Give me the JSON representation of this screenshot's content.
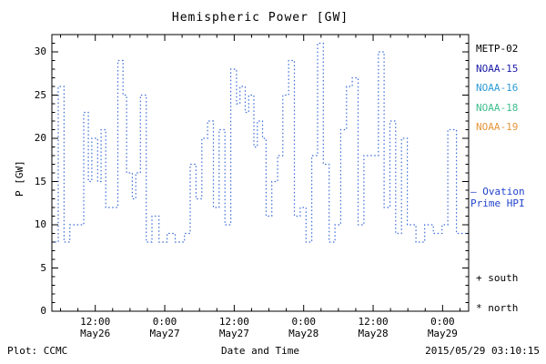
{
  "title": "Hemispheric Power [GW]",
  "ylabel": "P [GW]",
  "xlabel": "Date and Time",
  "footer_left": "Plot: CCMC",
  "footer_right": "2015/05/29 03:10:15",
  "legend": {
    "satellites": [
      {
        "label": "METP-02",
        "color": "#000000"
      },
      {
        "label": "NOAA-15",
        "color": "#1a1aa6"
      },
      {
        "label": "NOAA-16",
        "color": "#2e9bd6"
      },
      {
        "label": "NOAA-18",
        "color": "#3fbf8f"
      },
      {
        "label": "NOAA-19",
        "color": "#e8953a"
      }
    ],
    "ovation_line1": "— Ovation",
    "ovation_line2": "Prime HPI",
    "ovation_color": "#2244cc",
    "south_marker": "+ south",
    "north_marker": "* north"
  },
  "chart_data": {
    "type": "line",
    "style": "dotted-step",
    "line_color": "#3a6bd6",
    "title": "Hemispheric Power [GW]",
    "xlabel": "Date and Time",
    "ylabel": "P [GW]",
    "ylim": [
      0,
      32
    ],
    "xlim_hours": [
      4.5,
      76.5
    ],
    "grid": false,
    "legend_position": "right-outside",
    "y_ticks": [
      0,
      5,
      10,
      15,
      20,
      25,
      30
    ],
    "x_ticks": [
      {
        "hour": 12,
        "time": "12:00",
        "date": "May26"
      },
      {
        "hour": 24,
        "time": "0:00",
        "date": "May27"
      },
      {
        "hour": 36,
        "time": "12:00",
        "date": "May27"
      },
      {
        "hour": 48,
        "time": "0:00",
        "date": "May28"
      },
      {
        "hour": 60,
        "time": "12:00",
        "date": "May28"
      },
      {
        "hour": 72,
        "time": "0:00",
        "date": "May29"
      }
    ],
    "points": [
      {
        "t": 5.0,
        "v": 8
      },
      {
        "t": 5.6,
        "v": 26
      },
      {
        "t": 6.6,
        "v": 8
      },
      {
        "t": 7.6,
        "v": 10
      },
      {
        "t": 9.2,
        "v": 10
      },
      {
        "t": 10.0,
        "v": 23
      },
      {
        "t": 10.8,
        "v": 15
      },
      {
        "t": 11.4,
        "v": 20
      },
      {
        "t": 12.4,
        "v": 15
      },
      {
        "t": 13.0,
        "v": 21
      },
      {
        "t": 13.8,
        "v": 12
      },
      {
        "t": 15.4,
        "v": 12
      },
      {
        "t": 15.9,
        "v": 29
      },
      {
        "t": 16.8,
        "v": 25
      },
      {
        "t": 17.4,
        "v": 16
      },
      {
        "t": 18.4,
        "v": 13
      },
      {
        "t": 19.0,
        "v": 16
      },
      {
        "t": 19.8,
        "v": 25
      },
      {
        "t": 20.8,
        "v": 8
      },
      {
        "t": 21.8,
        "v": 11
      },
      {
        "t": 23.0,
        "v": 8
      },
      {
        "t": 24.4,
        "v": 9
      },
      {
        "t": 25.8,
        "v": 8
      },
      {
        "t": 27.4,
        "v": 9
      },
      {
        "t": 28.4,
        "v": 17
      },
      {
        "t": 29.4,
        "v": 13
      },
      {
        "t": 30.4,
        "v": 20
      },
      {
        "t": 31.4,
        "v": 22
      },
      {
        "t": 32.4,
        "v": 12
      },
      {
        "t": 33.4,
        "v": 21
      },
      {
        "t": 34.4,
        "v": 10
      },
      {
        "t": 35.4,
        "v": 28
      },
      {
        "t": 36.4,
        "v": 24
      },
      {
        "t": 37.0,
        "v": 26
      },
      {
        "t": 37.9,
        "v": 23
      },
      {
        "t": 38.5,
        "v": 25
      },
      {
        "t": 39.4,
        "v": 19
      },
      {
        "t": 40.0,
        "v": 22
      },
      {
        "t": 40.9,
        "v": 20
      },
      {
        "t": 41.5,
        "v": 11
      },
      {
        "t": 42.5,
        "v": 15
      },
      {
        "t": 43.5,
        "v": 18
      },
      {
        "t": 44.4,
        "v": 25
      },
      {
        "t": 45.4,
        "v": 29
      },
      {
        "t": 46.4,
        "v": 11
      },
      {
        "t": 47.4,
        "v": 12
      },
      {
        "t": 48.4,
        "v": 8
      },
      {
        "t": 49.4,
        "v": 18
      },
      {
        "t": 50.4,
        "v": 31
      },
      {
        "t": 51.4,
        "v": 17
      },
      {
        "t": 52.4,
        "v": 8
      },
      {
        "t": 53.4,
        "v": 10
      },
      {
        "t": 54.4,
        "v": 21
      },
      {
        "t": 55.4,
        "v": 26
      },
      {
        "t": 56.4,
        "v": 27
      },
      {
        "t": 57.4,
        "v": 10
      },
      {
        "t": 58.4,
        "v": 18
      },
      {
        "t": 59.9,
        "v": 18
      },
      {
        "t": 60.9,
        "v": 30
      },
      {
        "t": 61.9,
        "v": 12
      },
      {
        "t": 62.9,
        "v": 22
      },
      {
        "t": 63.9,
        "v": 9
      },
      {
        "t": 64.9,
        "v": 20
      },
      {
        "t": 65.9,
        "v": 10
      },
      {
        "t": 67.4,
        "v": 8
      },
      {
        "t": 68.9,
        "v": 10
      },
      {
        "t": 70.4,
        "v": 9
      },
      {
        "t": 71.9,
        "v": 10
      },
      {
        "t": 72.9,
        "v": 21
      },
      {
        "t": 74.4,
        "v": 9
      },
      {
        "t": 75.8,
        "v": 9
      }
    ]
  }
}
